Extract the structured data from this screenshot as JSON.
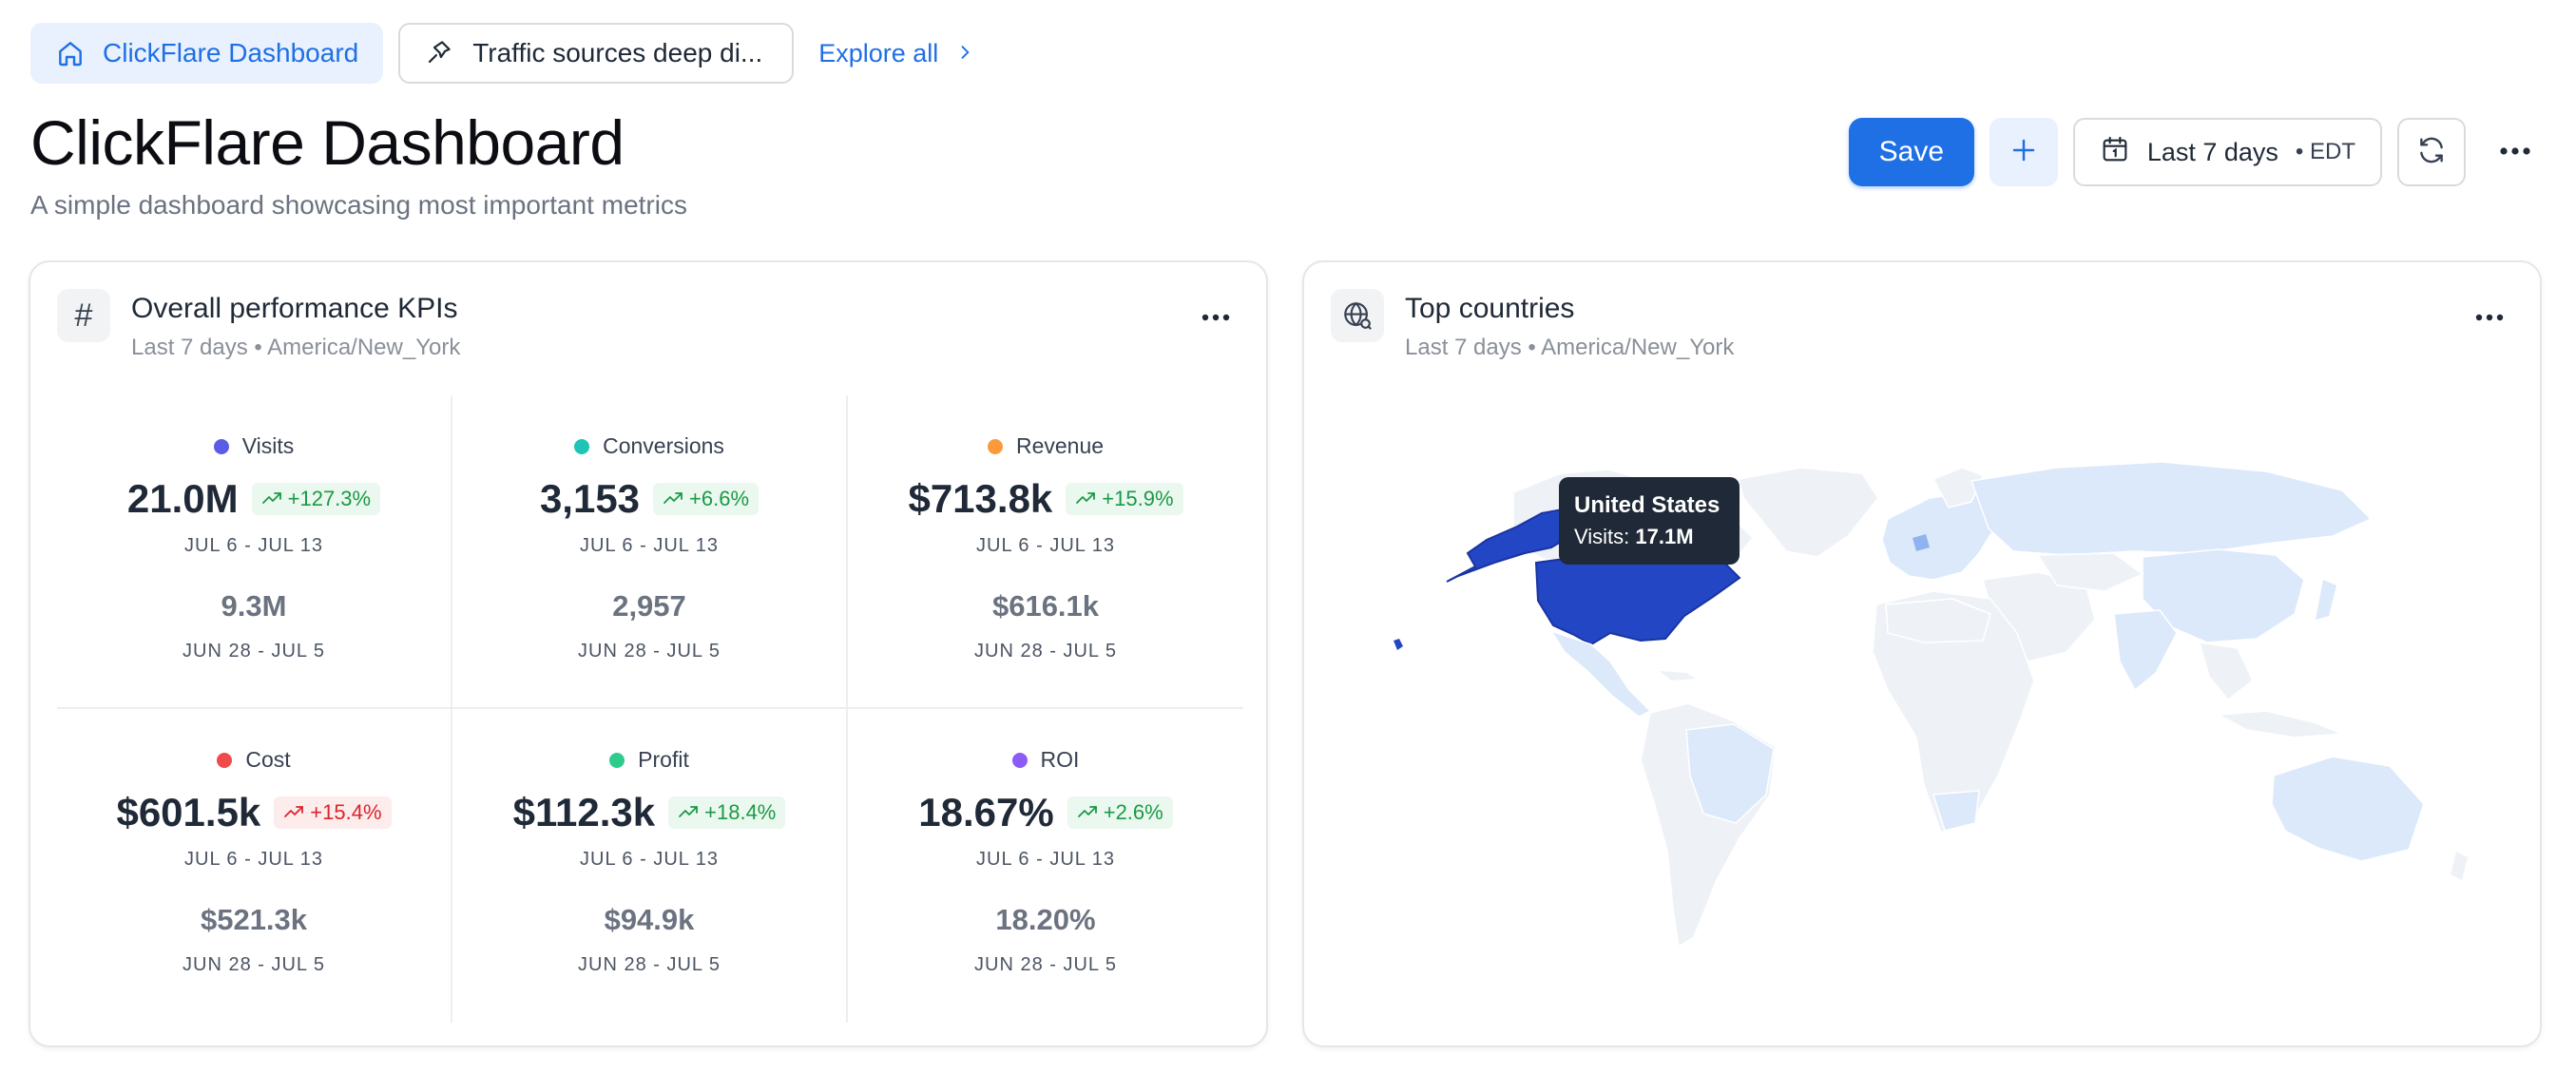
{
  "tabs": [
    {
      "label": "ClickFlare Dashboard",
      "icon": "home-icon",
      "active": true
    },
    {
      "label": "Traffic sources deep di...",
      "icon": "pin-icon",
      "active": false
    }
  ],
  "explore_label": "Explore all",
  "header": {
    "title": "ClickFlare Dashboard",
    "subtitle": "A simple dashboard showcasing most important metrics"
  },
  "toolbar": {
    "save_label": "Save",
    "date_range": "Last 7 days",
    "timezone": "• EDT"
  },
  "kpi_card": {
    "title": "Overall performance KPIs",
    "subtitle": "Last 7 days  •  America/New_York",
    "items": [
      {
        "label": "Visits",
        "color": "#5b5ce6",
        "value": "21.0M",
        "delta": "+127.3%",
        "trend": "up",
        "range": "JUL 6 - JUL 13",
        "prev_value": "9.3M",
        "prev_range": "JUN 28 - JUL 5"
      },
      {
        "label": "Conversions",
        "color": "#1fc4b4",
        "value": "3,153",
        "delta": "+6.6%",
        "trend": "up",
        "range": "JUL 6 - JUL 13",
        "prev_value": "2,957",
        "prev_range": "JUN 28 - JUL 5"
      },
      {
        "label": "Revenue",
        "color": "#fb9a3c",
        "value": "$713.8k",
        "delta": "+15.9%",
        "trend": "up",
        "range": "JUL 6 - JUL 13",
        "prev_value": "$616.1k",
        "prev_range": "JUN 28 - JUL 5"
      },
      {
        "label": "Cost",
        "color": "#ef4b4b",
        "value": "$601.5k",
        "delta": "+15.4%",
        "trend": "up-bad",
        "range": "JUL 6 - JUL 13",
        "prev_value": "$521.3k",
        "prev_range": "JUN 28 - JUL 5"
      },
      {
        "label": "Profit",
        "color": "#2ecc8c",
        "value": "$112.3k",
        "delta": "+18.4%",
        "trend": "up",
        "range": "JUL 6 - JUL 13",
        "prev_value": "$94.9k",
        "prev_range": "JUN 28 - JUL 5"
      },
      {
        "label": "ROI",
        "color": "#8b5cf6",
        "value": "18.67%",
        "delta": "+2.6%",
        "trend": "up",
        "range": "JUL 6 - JUL 13",
        "prev_value": "18.20%",
        "prev_range": "JUN 28 - JUL 5"
      }
    ]
  },
  "countries_card": {
    "title": "Top countries",
    "subtitle": "Last 7 days  •  America/New_York",
    "tooltip": {
      "country": "United States",
      "metric": "Visits:",
      "value": "17.1M"
    }
  },
  "colors": {
    "accent": "#1f6fe5",
    "map_highlight": "#2346c5",
    "map_light": "#dbe9fb",
    "map_faint": "#eef2f7"
  }
}
